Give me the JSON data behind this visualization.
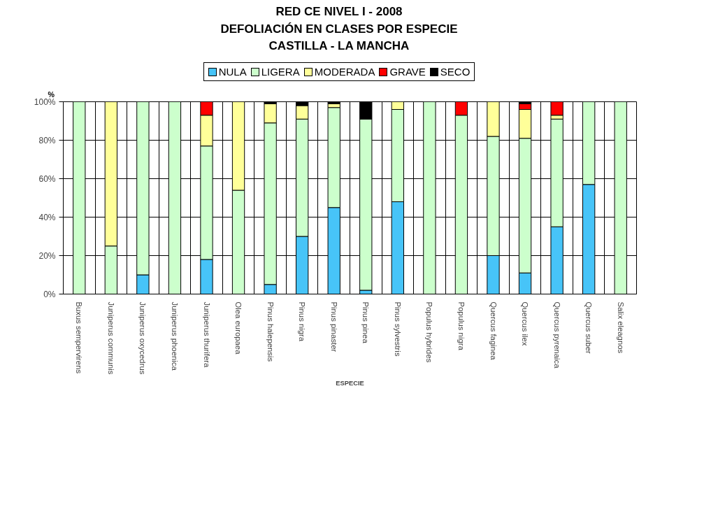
{
  "chart_data": {
    "type": "bar",
    "stacked": true,
    "title": "RED CE NIVEL I - 2008\nDEFOLIACIÓN EN CLASES POR ESPECIE\nCASTILLA - LA MANCHA",
    "xlabel": "ESPECIE",
    "ylabel": "%",
    "categories": [
      "Buxus sempervirens",
      "Juniperus communis",
      "Juniperus oxycedrus",
      "Juniperus phoenica",
      "Juniperus thurifera",
      "Olea europaea",
      "Pinus halepensis",
      "Pinus nigra",
      "Pinus pinaster",
      "Pinus pinea",
      "Pinus sylvestris",
      "Populus hybrides",
      "Populus nigra",
      "Quercus faginea",
      "Quercus ilex",
      "Quercus pyrenaica",
      "Quercus suber",
      "Salix eleagnos"
    ],
    "series": [
      {
        "name": "NULA",
        "color": "#47c4f8",
        "values": [
          0,
          0,
          10,
          0,
          18,
          0,
          5,
          30,
          45,
          2,
          48,
          0,
          0,
          20,
          11,
          35,
          57,
          0
        ]
      },
      {
        "name": "LIGERA",
        "color": "#ccffcc",
        "values": [
          100,
          25,
          90,
          100,
          59,
          54,
          84,
          61,
          52,
          89,
          48,
          100,
          93,
          62,
          70,
          56,
          43,
          100
        ]
      },
      {
        "name": "MODERADA",
        "color": "#ffff99",
        "values": [
          0,
          75,
          0,
          0,
          16,
          46,
          10,
          7,
          2,
          0,
          4,
          0,
          0,
          18,
          15,
          2,
          0,
          0
        ]
      },
      {
        "name": "GRAVE",
        "color": "#ff0000",
        "values": [
          0,
          0,
          0,
          0,
          7,
          0,
          0,
          0,
          0,
          0,
          0,
          0,
          7,
          0,
          3,
          7,
          0,
          0
        ]
      },
      {
        "name": "SECO",
        "color": "#000000",
        "values": [
          0,
          0,
          0,
          0,
          0,
          0,
          1,
          2,
          1,
          9,
          0,
          0,
          0,
          0,
          1,
          0,
          0,
          0
        ]
      }
    ],
    "ylim": [
      0,
      100
    ],
    "yticks": [
      {
        "value": 0,
        "label": "0%"
      },
      {
        "value": 20,
        "label": "20%"
      },
      {
        "value": 40,
        "label": "40%"
      },
      {
        "value": 60,
        "label": "60%"
      },
      {
        "value": 80,
        "label": "80%"
      },
      {
        "value": 100,
        "label": "100%"
      }
    ],
    "grid": true,
    "legend": "top"
  }
}
